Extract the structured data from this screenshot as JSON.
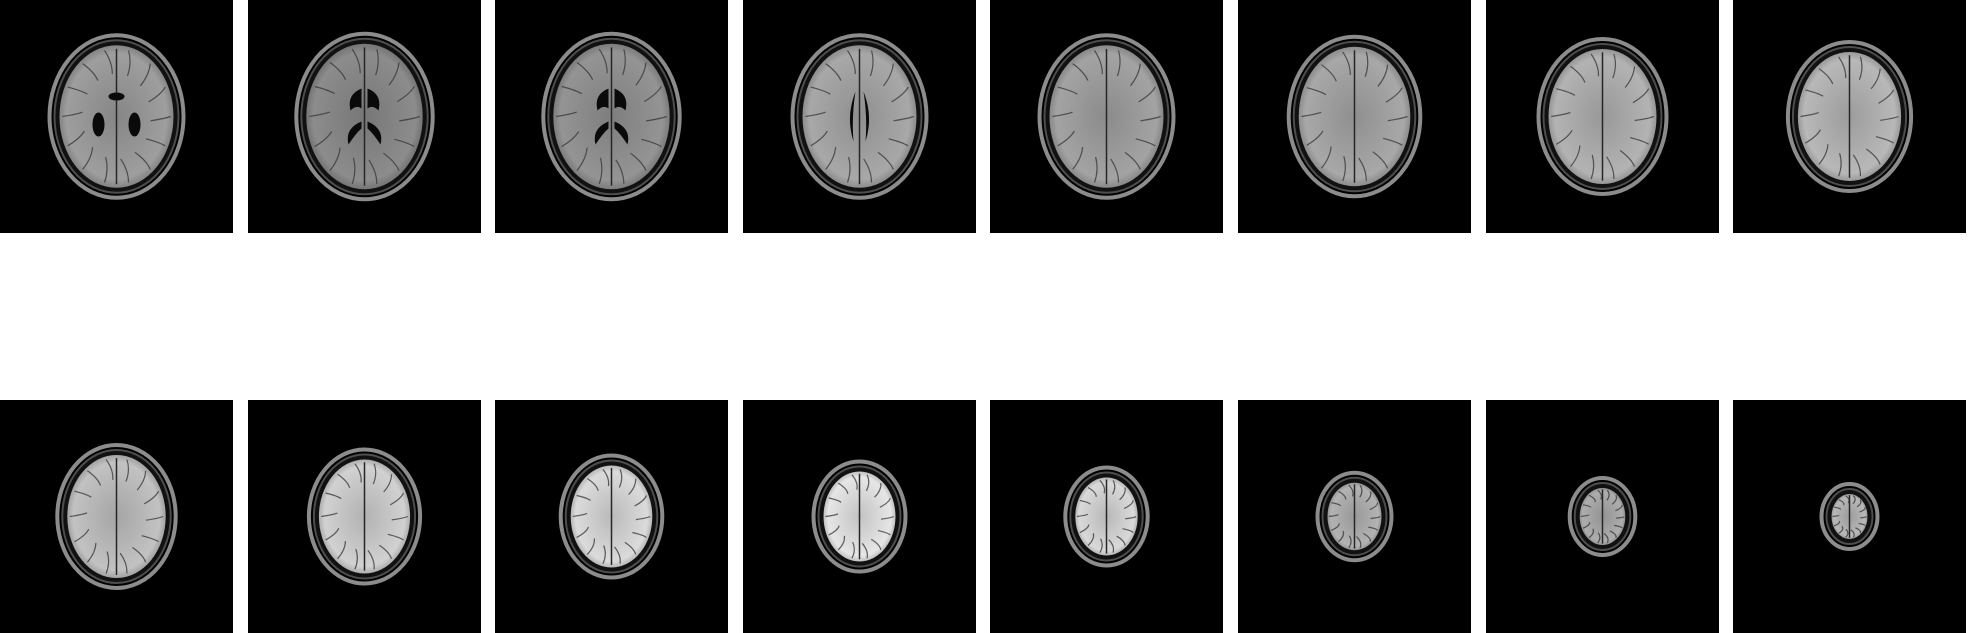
{
  "figure": {
    "rows": [
      {
        "slices": [
          {
            "brain_size": 0.95,
            "ventricle": "posterior-horns",
            "brightness": 0.62
          },
          {
            "brain_size": 0.97,
            "ventricle": "butterfly",
            "brightness": 0.55
          },
          {
            "brain_size": 0.97,
            "ventricle": "butterfly",
            "brightness": 0.58
          },
          {
            "brain_size": 0.95,
            "ventricle": "slit",
            "brightness": 0.66
          },
          {
            "brain_size": 0.95,
            "ventricle": "none",
            "brightness": 0.64
          },
          {
            "brain_size": 0.93,
            "ventricle": "none",
            "brightness": 0.66
          },
          {
            "brain_size": 0.9,
            "ventricle": "none",
            "brightness": 0.7
          },
          {
            "brain_size": 0.86,
            "ventricle": "none",
            "brightness": 0.72
          }
        ]
      },
      {
        "slices": [
          {
            "brain_size": 0.82,
            "ventricle": "none",
            "brightness": 0.76
          },
          {
            "brain_size": 0.76,
            "ventricle": "none",
            "brightness": 0.82
          },
          {
            "brain_size": 0.68,
            "ventricle": "none",
            "brightness": 0.86
          },
          {
            "brain_size": 0.6,
            "ventricle": "none",
            "brightness": 0.9
          },
          {
            "brain_size": 0.52,
            "ventricle": "none",
            "brightness": 0.85
          },
          {
            "brain_size": 0.45,
            "ventricle": "none",
            "brightness": 0.7
          },
          {
            "brain_size": 0.38,
            "ventricle": "none",
            "brightness": 0.68
          },
          {
            "brain_size": 0.3,
            "ventricle": "none",
            "brightness": 0.72
          }
        ]
      }
    ],
    "colors": {
      "background": "#ffffff",
      "panel": "#000000"
    }
  }
}
